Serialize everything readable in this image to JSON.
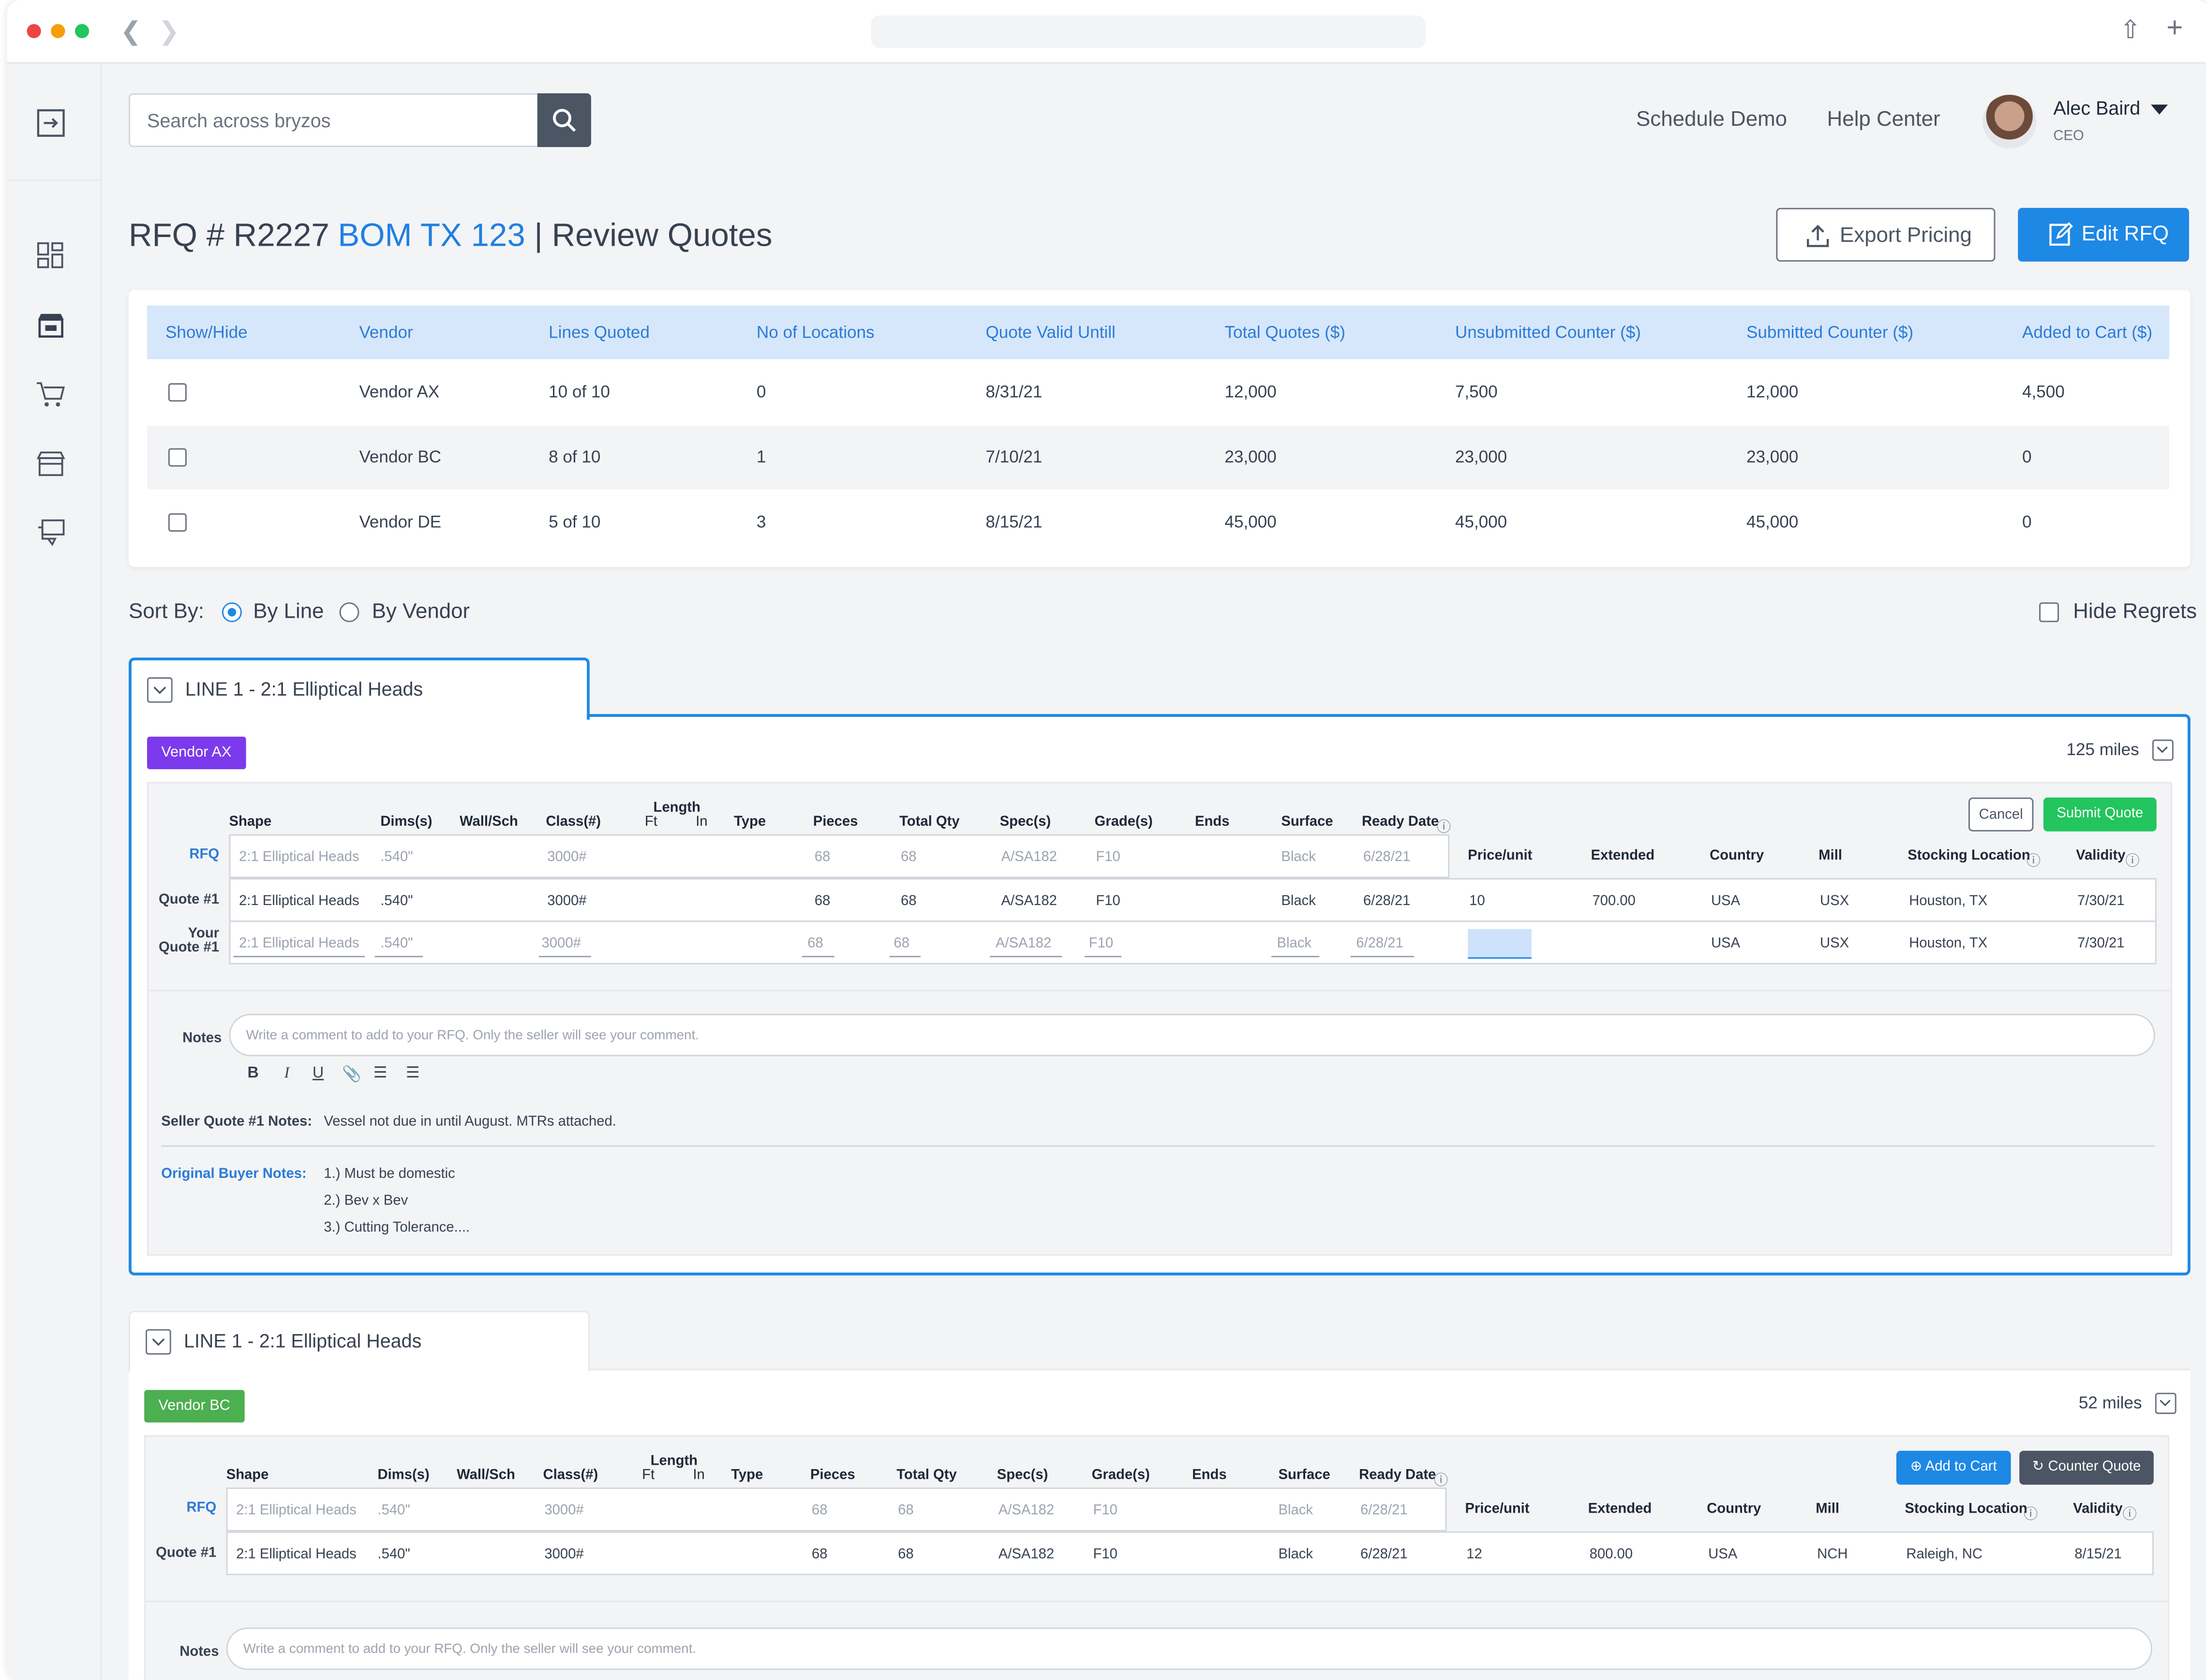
{
  "header": {
    "search_placeholder": "Search across bryzos",
    "links": [
      "Schedule Demo",
      "Help Center"
    ],
    "user": {
      "name": "Alec Baird",
      "role": "CEO"
    }
  },
  "page": {
    "rfq_prefix": "RFQ # R2227",
    "bom": "BOM TX 123",
    "suffix": "| Review Quotes",
    "export_label": "Export Pricing",
    "edit_label": "Edit RFQ"
  },
  "summary": {
    "columns": [
      "Show/Hide",
      "Vendor",
      "Lines Quoted",
      "No of Locations",
      "Quote Valid Untill",
      "Total Quotes ($)",
      "Unsubmitted Counter ($)",
      "Submitted Counter ($)",
      "Added to Cart ($)"
    ],
    "rows": [
      [
        "Vendor AX",
        "10 of 10",
        "0",
        "8/31/21",
        "12,000",
        "7,500",
        "12,000",
        "4,500"
      ],
      [
        "Vendor BC",
        "8 of 10",
        "1",
        "7/10/21",
        "23,000",
        "23,000",
        "23,000",
        "0"
      ],
      [
        "Vendor DE",
        "5 of 10",
        "3",
        "8/15/21",
        "45,000",
        "45,000",
        "45,000",
        "0"
      ]
    ]
  },
  "sort": {
    "label": "Sort By:",
    "by_line": "By Line",
    "by_vendor": "By Vendor",
    "hide_regrets": "Hide Regrets",
    "selected": "By Line"
  },
  "columns": {
    "shape": "Shape",
    "dims": "Dims(s)",
    "wall": "Wall/Sch",
    "class": "Class(#)",
    "length": "Length",
    "ft": "Ft",
    "in": "In",
    "type": "Type",
    "pieces": "Pieces",
    "total_qty": "Total Qty",
    "spec": "Spec(s)",
    "grade": "Grade(s)",
    "ends": "Ends",
    "surface": "Surface",
    "ready": "Ready Date",
    "price": "Price/unit",
    "extended": "Extended",
    "country": "Country",
    "mill": "Mill",
    "stocking": "Stocking Location",
    "validity": "Validity"
  },
  "line1": {
    "title": "LINE 1 - 2:1 Elliptical Heads",
    "vendor": "Vendor AX",
    "miles": "125 miles",
    "cancel": "Cancel",
    "submit": "Submit Quote",
    "rfq_label": "RFQ",
    "q1_label": "Quote #1",
    "your_label_1": "Your",
    "your_label_2": "Quote #1",
    "rfq": [
      "2:1 Elliptical Heads",
      ".540\"",
      "3000#",
      "68",
      "68",
      "A/SA182",
      "F10",
      "Black",
      "6/28/21"
    ],
    "q1": [
      "2:1 Elliptical Heads",
      ".540\"",
      "3000#",
      "68",
      "68",
      "A/SA182",
      "F10",
      "Black",
      "6/28/21",
      "10",
      "700.00",
      "USA",
      "USX",
      "Houston, TX",
      "7/30/21"
    ],
    "yq": [
      "2:1 Elliptical Heads",
      ".540\"",
      "3000#",
      "68",
      "68",
      "A/SA182",
      "F10",
      "Black",
      "6/28/21",
      "USA",
      "USX",
      "Houston, TX",
      "7/30/21"
    ],
    "notes_label": "Notes",
    "notes_placeholder": "Write a comment to add to your RFQ. Only the seller will see your comment.",
    "seller_label": "Seller Quote #1 Notes:",
    "seller_note": "Vessel not due in until August. MTRs attached.",
    "buyer_label": "Original Buyer Notes:",
    "buyer_notes": [
      "1.) Must be domestic",
      "2.) Bev x Bev",
      "3.) Cutting Tolerance...."
    ]
  },
  "line2": {
    "title": "LINE 1 - 2:1 Elliptical Heads",
    "vendor": "Vendor BC",
    "miles": "52 miles",
    "add_cart": "Add to Cart",
    "counter": "Counter Quote",
    "rfq": [
      "2:1 Elliptical Heads",
      ".540\"",
      "3000#",
      "68",
      "68",
      "A/SA182",
      "F10",
      "Black",
      "6/28/21"
    ],
    "q1": [
      "2:1 Elliptical Heads",
      ".540\"",
      "3000#",
      "68",
      "68",
      "A/SA182",
      "F10",
      "Black",
      "6/28/21",
      "12",
      "800.00",
      "USA",
      "NCH",
      "Raleigh, NC",
      "8/15/21"
    ],
    "notes_label": "Notes",
    "notes_placeholder": "Write a comment to add to your RFQ. Only the seller will see your comment."
  },
  "colors": {
    "accent": "#1e88e5",
    "vendor_ax": "#7c3aed",
    "vendor_bc": "#4caf50",
    "submit": "#22c55e"
  }
}
